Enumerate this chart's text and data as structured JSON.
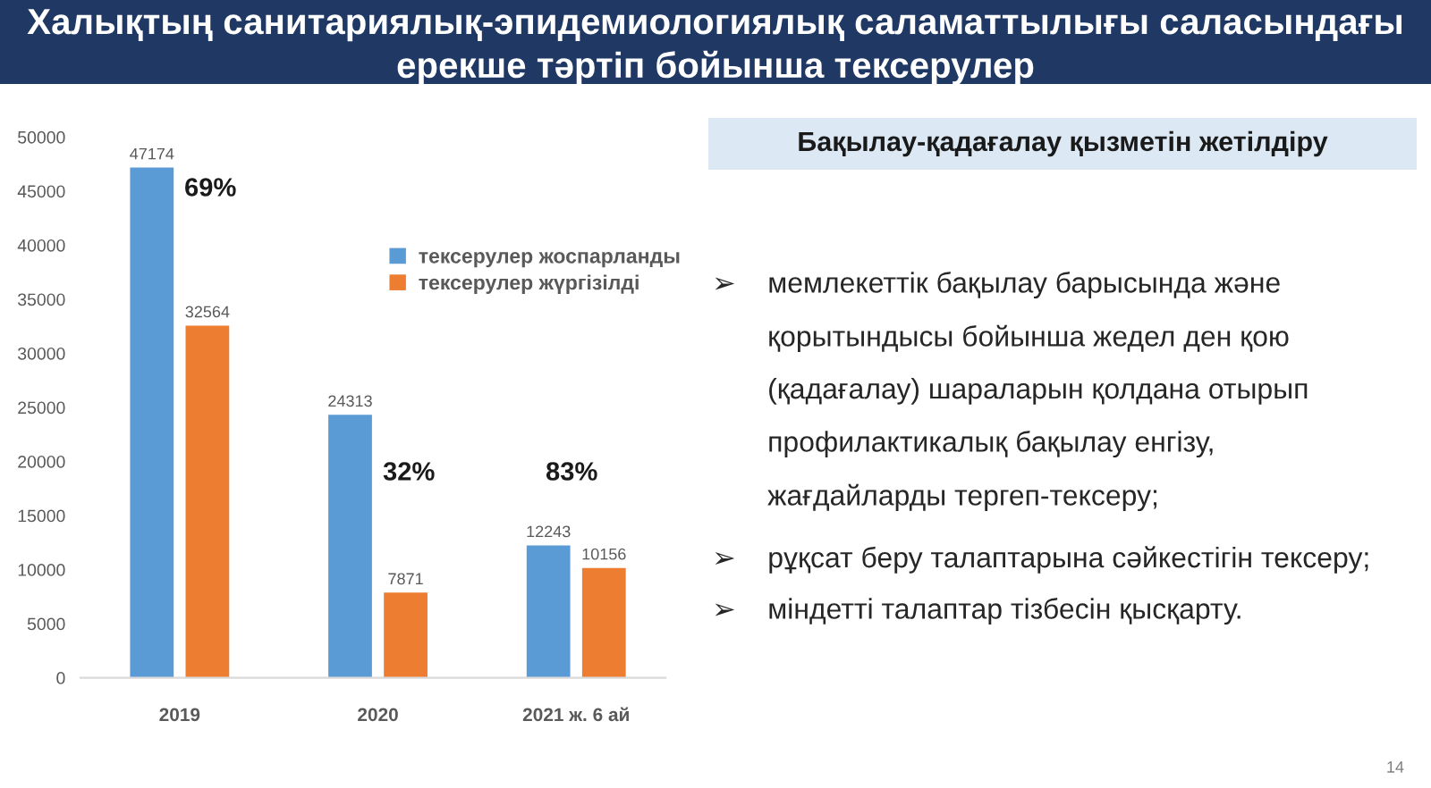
{
  "chart_data": {
    "type": "bar",
    "title": "Халықтың санитариялық-эпидемиологиялық саламаттылығы саласындағы ерекше тәртіп бойынша тексерулер",
    "categories": [
      "2019",
      "2020",
      "2021 ж. 6 ай"
    ],
    "series": [
      {
        "name": "тексерулер жоспарланды",
        "color": "#5b9bd5",
        "values": [
          47174,
          24313,
          12243
        ]
      },
      {
        "name": "тексерулер жүргізілді",
        "color": "#ed7d31",
        "values": [
          32564,
          7871,
          10156
        ]
      }
    ],
    "ylim": [
      0,
      50000
    ],
    "yticks": [
      0,
      5000,
      10000,
      15000,
      20000,
      25000,
      30000,
      35000,
      40000,
      45000,
      50000
    ],
    "legend": "top right",
    "data_labels": true,
    "annotations": [
      "69%",
      "32%",
      "83%",
      "Бақылау-қадағалау қызметін жетілдіру",
      "➢ мемлекеттік бақылау барысында және қорытындысы бойынша жедел ден қою (қадағалау) шараларын қолдана отырып профилактикалық бақылау енгізу, жағдайларды тергеп-тексеру;",
      "➢ рұқсат беру талаптарына сәйкестігін тексеру;",
      "➢ міндетті талаптар тізбесін қысқарту.",
      "14"
    ]
  }
}
